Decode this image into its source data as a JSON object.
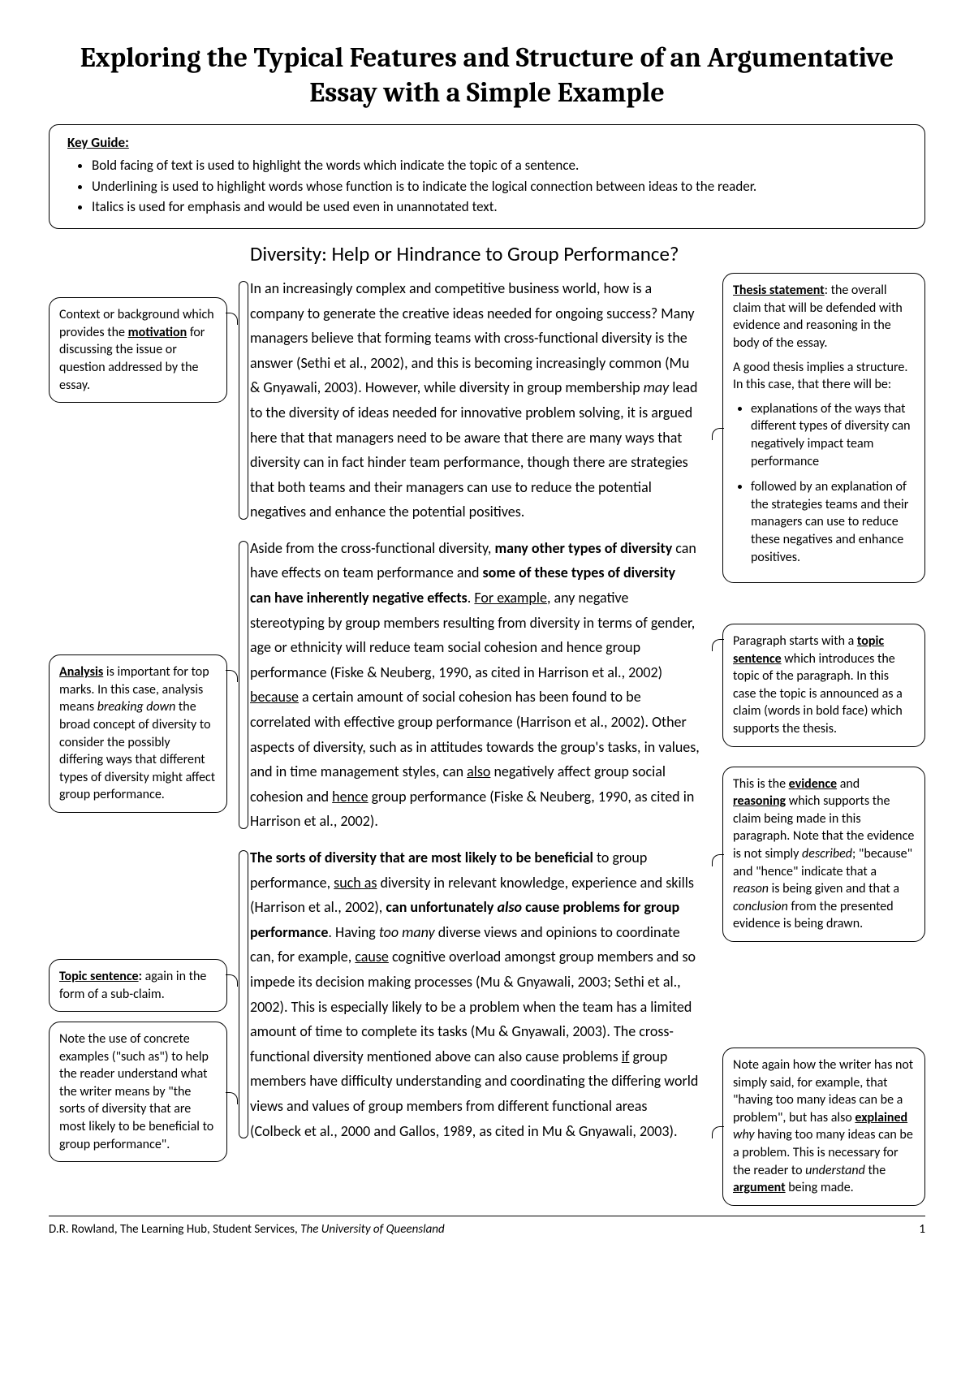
{
  "page_title": "Exploring the Typical Features and Structure of an Argumentative Essay with a Simple Example",
  "keyguide": {
    "title": "Key Guide:",
    "items": [
      "Bold facing of text is used to highlight the words which indicate the topic of a sentence.",
      "Underlining is used to highlight words whose function is to indicate the logical connection between ideas to the reader.",
      "Italics is used for emphasis and would be used even in unannotated text."
    ]
  },
  "essay": {
    "title": "Diversity: Help or Hindrance to Group Performance?",
    "para1": "In an increasingly complex and competitive business world, how is a company to generate the creative ideas needed for ongoing success? Many managers believe that forming teams with cross-functional diversity is the answer (Sethi et al., 2002), and this is becoming increasingly common (Mu & Gnyawali, 2003). However, while diversity in group membership <i>may</i> lead to the diversity of ideas needed for innovative problem solving, it is argued here that that managers need to be aware that there are many ways that diversity can in fact hinder team performance, though there are strategies that both teams and their managers can use to reduce the potential negatives and enhance the potential positives.",
    "para2": "Aside from the cross-functional diversity, <b>many other types of diversity</b> can have effects on team performance and <b>some of these types of diversity can have inherently negative effects</b>. <u>For example</u>, any negative stereotyping by group members resulting from diversity in terms of gender, age or ethnicity will reduce team social cohesion and hence group performance (Fiske & Neuberg, 1990, as cited in Harrison et al., 2002) <u>because</u> a certain amount of social cohesion has been found to be correlated with effective group performance (Harrison et al., 2002). Other aspects of diversity, such as in attitudes towards the group's tasks, in values, and in time management styles, can <u>also</u> negatively affect group social cohesion and <u>hence</u> group performance (Fiske & Neuberg, 1990, as cited in Harrison et al., 2002).",
    "para3": "<b>The sorts of diversity that are most likely to be beneficial</b> to group performance, <u>such as</u> diversity in relevant knowledge, experience and skills (Harrison et al., 2002), <b>can unfortunately <i>also</i> cause problems for group performance</b>. Having <i>too many</i> diverse views and opinions to coordinate can, for example, <u>cause</u> cognitive overload amongst group members and so impede its decision making processes (Mu & Gnyawali, 2003; Sethi et al., 2002). This is especially likely to be a problem when the team has a limited amount of time to complete its tasks (Mu & Gnyawali, 2003). The cross-functional diversity mentioned above can also cause problems <u>if</u> group members have difficulty understanding and coordinating the differing world views and values of group members from different functional areas (Colbeck et al., 2000 and Gallos, 1989, as cited in Mu & Gnyawali, 2003)."
  },
  "left": {
    "context": "Context or background which provides the <b><u>motivation</u></b> for discussing the issue or question addressed by the essay.",
    "analysis": "<b><u>Analysis</u></b> is important for top marks. In this case, analysis means <i>breaking down</i> the broad concept of diversity to consider the possibly differing ways that different types of diversity might affect group performance.",
    "topic_sentence_1": "<b><u>Topic sentence</u>:</b> again in the form of a sub-claim.",
    "topic_sentence_2": "Note the use of concrete examples (\"such as\") to help the reader understand what the writer means by \"the sorts of diversity that are most likely to be beneficial to group performance\"."
  },
  "right": {
    "thesis_intro": "<b><u>Thesis statement</u></b>: the overall claim that will be defended with evidence and reasoning in the body of the essay.",
    "thesis_structure": "A good thesis implies a structure. In this case, that there will be:",
    "thesis_bullets": [
      "explanations of the ways that different types of diversity can negatively impact team performance",
      "followed by an explanation of the strategies teams and their managers can use to reduce these negatives and enhance positives."
    ],
    "topic_sentence": "Paragraph starts with a <b><u>topic sentence</u></b> which introduces the topic of the paragraph. In this case the topic is announced as a claim (words in bold face) which supports the thesis.",
    "evidence": "This is the <b><u>evidence</u></b> and <b><u>reasoning</u></b> which supports the claim being made in this paragraph. Note that the evidence is not simply <i>described</i>; \"because\" and \"hence\" indicate that a <i>reason</i> is being given and that a <i>conclusion</i> from the presented evidence is being drawn.",
    "explained": "Note again how the writer has not simply said, for example, that \"having too many ideas can be a problem\", but has also <b><u>explained</u></b> <i>why</i> having too many ideas can be a problem. This is necessary for the reader to <i>understand</i> the <b><u>argument</u></b> being made."
  },
  "footer": {
    "left": "D.R. Rowland, The Learning Hub, Student Services, <i>The University of Queensland</i>",
    "page_num": "1"
  },
  "spacing": {
    "left_gap1": 70,
    "left_gap2": 310,
    "left_gap3": 180,
    "left_gap4": 12,
    "right_gap1": 40,
    "right_gap2": 50,
    "right_gap3": 24,
    "right_gap4": 130
  },
  "colors": {
    "text": "#000000",
    "bg": "#ffffff",
    "border": "#000000"
  }
}
